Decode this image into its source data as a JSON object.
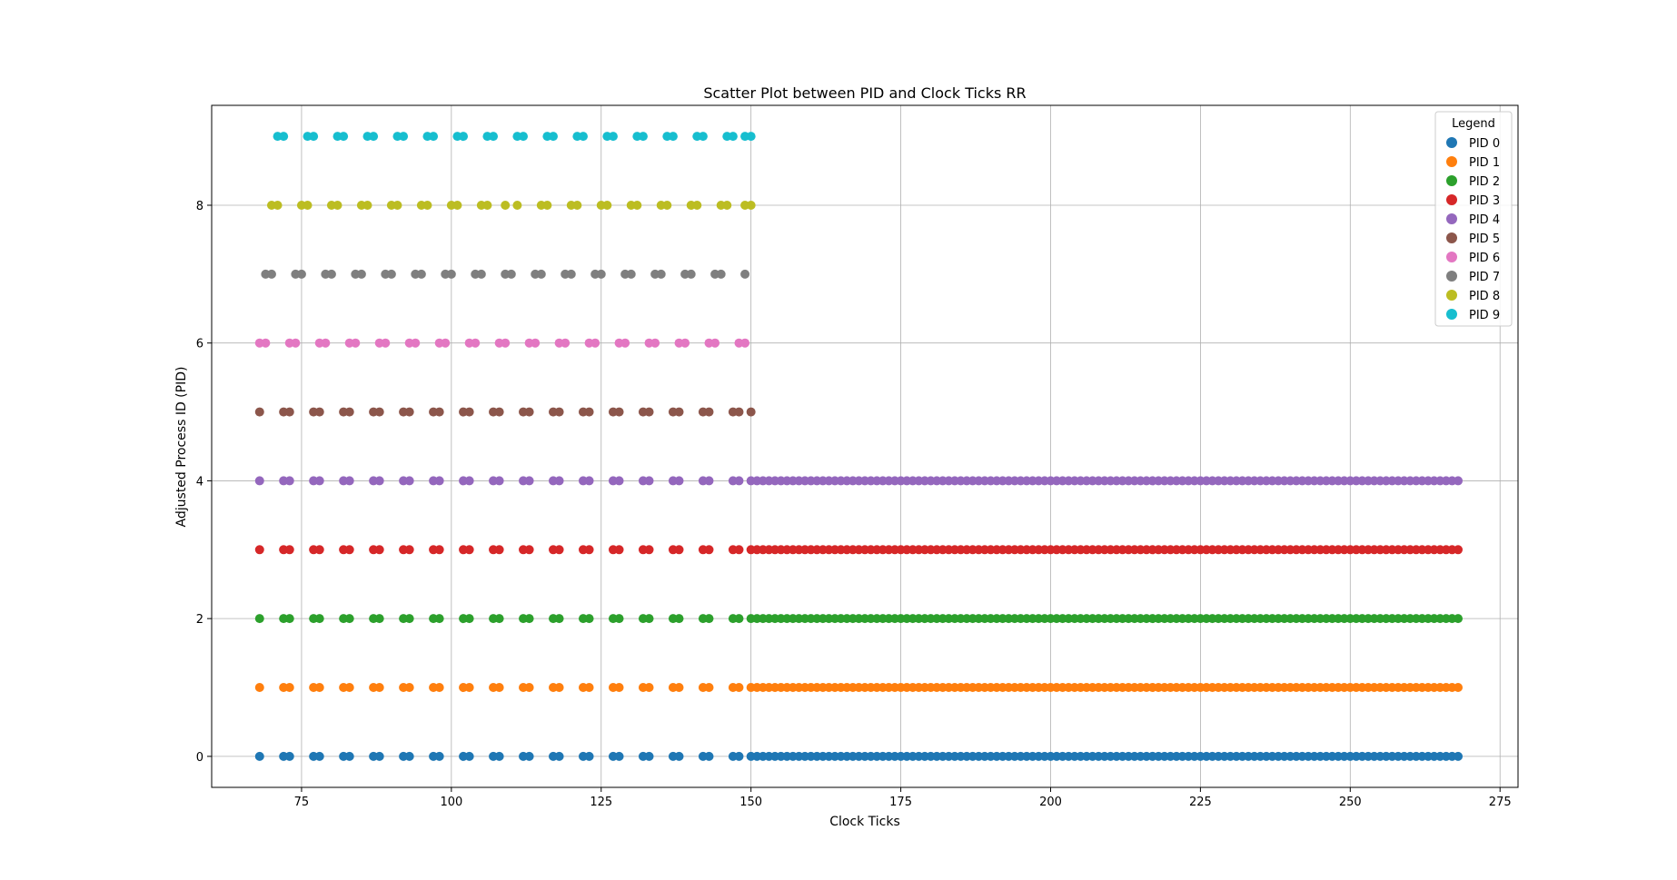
{
  "chart_data": {
    "type": "scatter",
    "title": "Scatter Plot between PID and Clock Ticks RR",
    "xlabel": "Clock Ticks",
    "ylabel": "Adjusted Process ID (PID)",
    "xlim": [
      60,
      278
    ],
    "ylim": [
      -0.45,
      9.45
    ],
    "x_ticks": [
      75,
      100,
      125,
      150,
      175,
      200,
      225,
      250,
      275
    ],
    "y_ticks": [
      0,
      2,
      4,
      6,
      8
    ],
    "grid": true,
    "legend": {
      "title": "Legend",
      "placement": "top-right"
    },
    "series": [
      {
        "name": "PID 0",
        "color": "#1f77b4",
        "y": 0,
        "x": [
          68,
          72,
          73,
          77,
          78,
          82,
          83,
          87,
          88,
          92,
          93,
          97,
          98,
          102,
          103,
          107,
          108,
          112,
          113,
          117,
          118,
          122,
          123,
          127,
          128,
          132,
          133,
          137,
          138,
          142,
          143,
          147,
          148,
          150,
          151,
          152,
          153,
          154,
          155,
          156,
          157,
          158,
          159,
          160,
          161,
          162,
          163,
          164,
          165,
          166,
          167,
          168,
          169,
          170,
          171,
          172,
          173,
          174,
          175,
          176,
          177,
          178,
          179,
          180,
          181,
          182,
          183,
          184,
          185,
          186,
          187,
          188,
          189,
          190,
          191,
          192,
          193,
          194,
          195,
          196,
          197,
          198,
          199,
          200,
          201,
          202,
          203,
          204,
          205,
          206,
          207,
          208,
          209,
          210,
          211,
          212,
          213,
          214,
          215,
          216,
          217,
          218,
          219,
          220,
          221,
          222,
          223,
          224,
          225,
          226,
          227,
          228,
          229,
          230,
          231,
          232,
          233,
          234,
          235,
          236,
          237,
          238,
          239,
          240,
          241,
          242,
          243,
          244,
          245,
          246,
          247,
          248,
          249,
          250,
          251,
          252,
          253,
          254,
          255,
          256,
          257,
          258,
          259,
          260,
          261,
          262,
          263,
          264,
          265,
          266,
          267,
          268
        ]
      },
      {
        "name": "PID 1",
        "color": "#ff7f0e",
        "y": 1,
        "x": [
          68,
          72,
          73,
          77,
          78,
          82,
          83,
          87,
          88,
          92,
          93,
          97,
          98,
          102,
          103,
          107,
          108,
          112,
          113,
          117,
          118,
          122,
          123,
          127,
          128,
          132,
          133,
          137,
          138,
          142,
          143,
          147,
          148,
          150,
          151,
          152,
          153,
          154,
          155,
          156,
          157,
          158,
          159,
          160,
          161,
          162,
          163,
          164,
          165,
          166,
          167,
          168,
          169,
          170,
          171,
          172,
          173,
          174,
          175,
          176,
          177,
          178,
          179,
          180,
          181,
          182,
          183,
          184,
          185,
          186,
          187,
          188,
          189,
          190,
          191,
          192,
          193,
          194,
          195,
          196,
          197,
          198,
          199,
          200,
          201,
          202,
          203,
          204,
          205,
          206,
          207,
          208,
          209,
          210,
          211,
          212,
          213,
          214,
          215,
          216,
          217,
          218,
          219,
          220,
          221,
          222,
          223,
          224,
          225,
          226,
          227,
          228,
          229,
          230,
          231,
          232,
          233,
          234,
          235,
          236,
          237,
          238,
          239,
          240,
          241,
          242,
          243,
          244,
          245,
          246,
          247,
          248,
          249,
          250,
          251,
          252,
          253,
          254,
          255,
          256,
          257,
          258,
          259,
          260,
          261,
          262,
          263,
          264,
          265,
          266,
          267,
          268
        ]
      },
      {
        "name": "PID 2",
        "color": "#2ca02c",
        "y": 2,
        "x": [
          68,
          72,
          73,
          77,
          78,
          82,
          83,
          87,
          88,
          92,
          93,
          97,
          98,
          102,
          103,
          107,
          108,
          112,
          113,
          117,
          118,
          122,
          123,
          127,
          128,
          132,
          133,
          137,
          138,
          142,
          143,
          147,
          148,
          150,
          151,
          152,
          153,
          154,
          155,
          156,
          157,
          158,
          159,
          160,
          161,
          162,
          163,
          164,
          165,
          166,
          167,
          168,
          169,
          170,
          171,
          172,
          173,
          174,
          175,
          176,
          177,
          178,
          179,
          180,
          181,
          182,
          183,
          184,
          185,
          186,
          187,
          188,
          189,
          190,
          191,
          192,
          193,
          194,
          195,
          196,
          197,
          198,
          199,
          200,
          201,
          202,
          203,
          204,
          205,
          206,
          207,
          208,
          209,
          210,
          211,
          212,
          213,
          214,
          215,
          216,
          217,
          218,
          219,
          220,
          221,
          222,
          223,
          224,
          225,
          226,
          227,
          228,
          229,
          230,
          231,
          232,
          233,
          234,
          235,
          236,
          237,
          238,
          239,
          240,
          241,
          242,
          243,
          244,
          245,
          246,
          247,
          248,
          249,
          250,
          251,
          252,
          253,
          254,
          255,
          256,
          257,
          258,
          259,
          260,
          261,
          262,
          263,
          264,
          265,
          266,
          267,
          268
        ]
      },
      {
        "name": "PID 3",
        "color": "#d62728",
        "y": 3,
        "x": [
          68,
          72,
          73,
          77,
          78,
          82,
          83,
          87,
          88,
          92,
          93,
          97,
          98,
          102,
          103,
          107,
          108,
          112,
          113,
          117,
          118,
          122,
          123,
          127,
          128,
          132,
          133,
          137,
          138,
          142,
          143,
          147,
          148,
          150,
          151,
          152,
          153,
          154,
          155,
          156,
          157,
          158,
          159,
          160,
          161,
          162,
          163,
          164,
          165,
          166,
          167,
          168,
          169,
          170,
          171,
          172,
          173,
          174,
          175,
          176,
          177,
          178,
          179,
          180,
          181,
          182,
          183,
          184,
          185,
          186,
          187,
          188,
          189,
          190,
          191,
          192,
          193,
          194,
          195,
          196,
          197,
          198,
          199,
          200,
          201,
          202,
          203,
          204,
          205,
          206,
          207,
          208,
          209,
          210,
          211,
          212,
          213,
          214,
          215,
          216,
          217,
          218,
          219,
          220,
          221,
          222,
          223,
          224,
          225,
          226,
          227,
          228,
          229,
          230,
          231,
          232,
          233,
          234,
          235,
          236,
          237,
          238,
          239,
          240,
          241,
          242,
          243,
          244,
          245,
          246,
          247,
          248,
          249,
          250,
          251,
          252,
          253,
          254,
          255,
          256,
          257,
          258,
          259,
          260,
          261,
          262,
          263,
          264,
          265,
          266,
          267,
          268
        ]
      },
      {
        "name": "PID 4",
        "color": "#9467bd",
        "y": 4,
        "x": [
          68,
          72,
          73,
          77,
          78,
          82,
          83,
          87,
          88,
          92,
          93,
          97,
          98,
          102,
          103,
          107,
          108,
          112,
          113,
          117,
          118,
          122,
          123,
          127,
          128,
          132,
          133,
          137,
          138,
          142,
          143,
          147,
          148,
          150,
          151,
          152,
          153,
          154,
          155,
          156,
          157,
          158,
          159,
          160,
          161,
          162,
          163,
          164,
          165,
          166,
          167,
          168,
          169,
          170,
          171,
          172,
          173,
          174,
          175,
          176,
          177,
          178,
          179,
          180,
          181,
          182,
          183,
          184,
          185,
          186,
          187,
          188,
          189,
          190,
          191,
          192,
          193,
          194,
          195,
          196,
          197,
          198,
          199,
          200,
          201,
          202,
          203,
          204,
          205,
          206,
          207,
          208,
          209,
          210,
          211,
          212,
          213,
          214,
          215,
          216,
          217,
          218,
          219,
          220,
          221,
          222,
          223,
          224,
          225,
          226,
          227,
          228,
          229,
          230,
          231,
          232,
          233,
          234,
          235,
          236,
          237,
          238,
          239,
          240,
          241,
          242,
          243,
          244,
          245,
          246,
          247,
          248,
          249,
          250,
          251,
          252,
          253,
          254,
          255,
          256,
          257,
          258,
          259,
          260,
          261,
          262,
          263,
          264,
          265,
          266,
          267,
          268
        ]
      },
      {
        "name": "PID 5",
        "color": "#8c564b",
        "y": 5,
        "x": [
          68,
          72,
          73,
          77,
          78,
          82,
          83,
          87,
          88,
          92,
          93,
          97,
          98,
          102,
          103,
          107,
          108,
          112,
          113,
          117,
          118,
          122,
          123,
          127,
          128,
          132,
          133,
          137,
          138,
          142,
          143,
          147,
          148,
          150
        ]
      },
      {
        "name": "PID 6",
        "color": "#e377c2",
        "y": 6,
        "x": [
          68,
          69,
          73,
          74,
          78,
          79,
          83,
          84,
          88,
          89,
          93,
          94,
          98,
          99,
          103,
          104,
          108,
          109,
          113,
          114,
          118,
          119,
          123,
          124,
          128,
          129,
          133,
          134,
          138,
          139,
          143,
          144,
          148,
          149
        ]
      },
      {
        "name": "PID 7",
        "color": "#7f7f7f",
        "y": 7,
        "x": [
          69,
          70,
          74,
          75,
          79,
          80,
          84,
          85,
          89,
          90,
          94,
          95,
          99,
          100,
          104,
          105,
          109,
          110,
          114,
          115,
          119,
          120,
          124,
          125,
          129,
          130,
          134,
          135,
          139,
          140,
          144,
          145,
          149
        ]
      },
      {
        "name": "PID 8",
        "color": "#bcbd22",
        "y": 8,
        "x": [
          70,
          71,
          75,
          76,
          80,
          81,
          85,
          86,
          90,
          91,
          95,
          96,
          100,
          101,
          105,
          106,
          109,
          111,
          115,
          116,
          120,
          121,
          125,
          126,
          130,
          131,
          135,
          136,
          140,
          141,
          145,
          146,
          149,
          150
        ]
      },
      {
        "name": "PID 9",
        "color": "#17becf",
        "y": 9,
        "x": [
          71,
          72,
          76,
          77,
          81,
          82,
          86,
          87,
          91,
          92,
          96,
          97,
          101,
          102,
          106,
          107,
          111,
          112,
          116,
          117,
          121,
          122,
          126,
          127,
          131,
          132,
          136,
          137,
          141,
          142,
          146,
          147,
          149,
          150
        ]
      }
    ]
  }
}
